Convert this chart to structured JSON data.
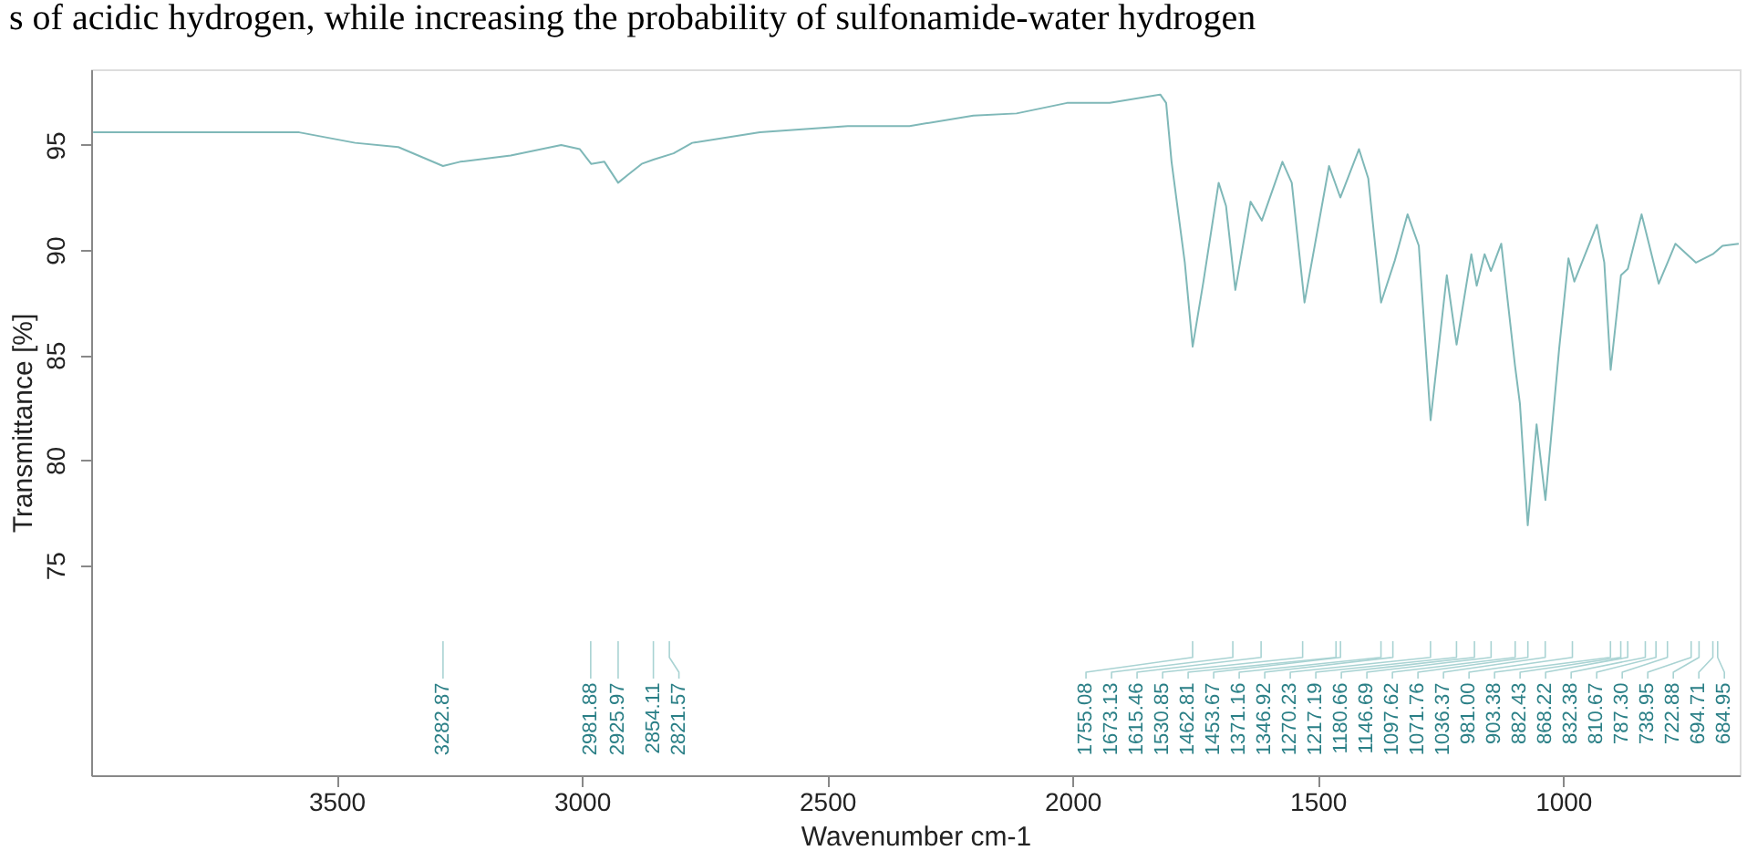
{
  "chart_data": {
    "type": "line",
    "xlabel": "Wavenumber cm-1",
    "ylabel": "Transmittance [%]",
    "xlim": [
      4000,
      640
    ],
    "ylim": [
      65,
      98.6
    ],
    "xticks": [
      3500,
      3000,
      2500,
      2000,
      1500,
      1000
    ],
    "yticks": [
      75,
      80,
      85,
      90,
      95
    ],
    "grid": false,
    "marker": "none",
    "line_style": "solid",
    "series": [
      {
        "color": "#7fb8b8",
        "x": [
          3996,
          3576,
          3462,
          3374,
          3283,
          3248,
          3145,
          3042,
          3004,
          2981,
          2954,
          2926,
          2905,
          2878,
          2854,
          2813,
          2775,
          2637,
          2458,
          2332,
          2202,
          2114,
          2011,
          1924,
          1821,
          1809,
          1798,
          1771,
          1755,
          1733,
          1702,
          1687,
          1668,
          1637,
          1614,
          1572,
          1553,
          1527,
          1477,
          1454,
          1416,
          1397,
          1371,
          1343,
          1317,
          1294,
          1270,
          1237,
          1217,
          1187,
          1176,
          1160,
          1147,
          1126,
          1098,
          1088,
          1072,
          1054,
          1036,
          1008,
          989,
          977,
          931,
          916,
          903,
          882,
          868,
          840,
          824,
          805,
          787,
          771,
          729,
          695,
          675,
          642
        ],
        "values": [
          95.6,
          95.6,
          95.1,
          94.9,
          94.0,
          94.2,
          94.5,
          95.0,
          94.8,
          94.1,
          94.2,
          93.2,
          93.6,
          94.1,
          94.3,
          94.6,
          95.1,
          95.6,
          95.9,
          95.9,
          96.4,
          96.5,
          97.0,
          97.0,
          97.4,
          97.0,
          94.2,
          89.4,
          85.4,
          88.5,
          93.2,
          92.1,
          88.1,
          92.3,
          91.4,
          94.2,
          93.2,
          87.5,
          94.0,
          92.5,
          94.8,
          93.4,
          87.5,
          89.5,
          91.7,
          90.2,
          81.9,
          88.8,
          85.5,
          89.8,
          88.3,
          89.8,
          89.0,
          90.3,
          84.5,
          82.7,
          76.9,
          81.7,
          78.1,
          85.3,
          89.6,
          88.5,
          91.2,
          89.4,
          84.3,
          88.8,
          89.1,
          91.7,
          90.2,
          88.4,
          89.4,
          90.3,
          89.4,
          89.8,
          90.2,
          90.3
        ]
      }
    ],
    "annotations": [
      "s of acidic hydrogen, while increasing the probability of sulfonamide-water hydrogen",
      {
        "text": "3282.87",
        "x": 3282.87
      },
      {
        "text": "2981.88",
        "x": 2981.88
      },
      {
        "text": "2925.97",
        "x": 2925.97
      },
      {
        "text": "2854.11",
        "x": 2854.11
      },
      {
        "text": "2821.57",
        "x": 2821.57
      },
      {
        "text": "1755.08",
        "x": 1755.08
      },
      {
        "text": "1673.13",
        "x": 1673.13
      },
      {
        "text": "1615.46",
        "x": 1615.46
      },
      {
        "text": "1530.85",
        "x": 1530.85
      },
      {
        "text": "1462.81",
        "x": 1462.81
      },
      {
        "text": "1453.67",
        "x": 1453.67
      },
      {
        "text": "1371.16",
        "x": 1371.16
      },
      {
        "text": "1346.92",
        "x": 1346.92
      },
      {
        "text": "1270.23",
        "x": 1270.23
      },
      {
        "text": "1217.19",
        "x": 1217.19
      },
      {
        "text": "1180.66",
        "x": 1180.66
      },
      {
        "text": "1146.69",
        "x": 1146.69
      },
      {
        "text": "1097.62",
        "x": 1097.62
      },
      {
        "text": "1071.76",
        "x": 1071.76
      },
      {
        "text": "1036.37",
        "x": 1036.37
      },
      {
        "text": "981.00",
        "x": 981.0
      },
      {
        "text": "903.38",
        "x": 903.38
      },
      {
        "text": "882.43",
        "x": 882.43
      },
      {
        "text": "868.22",
        "x": 868.22
      },
      {
        "text": "832.38",
        "x": 832.38
      },
      {
        "text": "810.67",
        "x": 810.67
      },
      {
        "text": "787.30",
        "x": 787.3
      },
      {
        "text": "738.95",
        "x": 738.95
      },
      {
        "text": "722.88",
        "x": 722.88
      },
      {
        "text": "694.71",
        "x": 694.71
      },
      {
        "text": "684.95",
        "x": 684.95
      }
    ]
  }
}
